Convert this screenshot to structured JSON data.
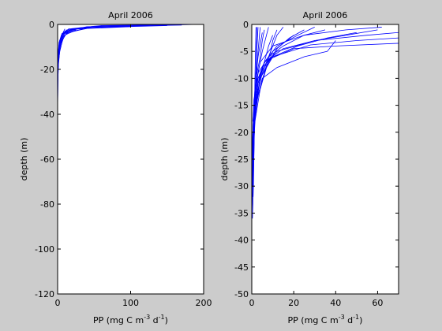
{
  "chart_data": [
    {
      "type": "line",
      "title": "April 2006",
      "xlabel": "PP (mg C m^-3 d^-1)",
      "xlabel_parts": [
        "PP (mg C m",
        "-3",
        " d",
        "-1",
        ")"
      ],
      "ylabel": "depth (m)",
      "xlim": [
        0,
        200
      ],
      "ylim": [
        -120,
        0
      ],
      "xticks": [
        0,
        100,
        200
      ],
      "yticks": [
        0,
        -20,
        -40,
        -60,
        -80,
        -100,
        -120
      ],
      "grid": false,
      "line_color": "#0000ff",
      "series": [
        {
          "x": [
            200,
            60,
            15,
            5,
            2,
            0.5,
            0
          ],
          "y": [
            0,
            -0.5,
            -2,
            -5,
            -10,
            -20,
            -30
          ]
        },
        {
          "x": [
            190,
            50,
            12,
            4,
            1.5,
            0.3
          ],
          "y": [
            0,
            -0.8,
            -2.5,
            -6,
            -12,
            -25
          ]
        },
        {
          "x": [
            170,
            40,
            10,
            3,
            1,
            0
          ],
          "y": [
            -0.3,
            -1,
            -3,
            -7,
            -15,
            -28
          ]
        },
        {
          "x": [
            150,
            35,
            8,
            2.5,
            1,
            0
          ],
          "y": [
            -0.5,
            -1.5,
            -3.5,
            -8,
            -16,
            -35
          ]
        },
        {
          "x": [
            120,
            30,
            7,
            2,
            0.5
          ],
          "y": [
            -0.5,
            -1.5,
            -4,
            -9,
            -18
          ]
        },
        {
          "x": [
            100,
            25,
            6,
            2,
            0.5
          ],
          "y": [
            -1,
            -2,
            -4,
            -8,
            -14
          ]
        },
        {
          "x": [
            80,
            20,
            5,
            1.5,
            0.3
          ],
          "y": [
            -1,
            -2,
            -5,
            -10,
            -20
          ]
        },
        {
          "x": [
            60,
            18,
            6,
            2,
            0.5
          ],
          "y": [
            -1.2,
            -2.2,
            -4.5,
            -9,
            -17
          ]
        },
        {
          "x": [
            45,
            30,
            10,
            3,
            1
          ],
          "y": [
            -1.5,
            -2.5,
            -4,
            -7,
            -12
          ]
        },
        {
          "x": [
            35,
            22,
            8,
            3,
            1,
            0.2
          ],
          "y": [
            -2,
            -3,
            -5,
            -8,
            -13,
            -22
          ]
        },
        {
          "x": [
            25,
            15,
            6,
            2,
            0.5
          ],
          "y": [
            -2.5,
            -3.5,
            -6,
            -10,
            -16
          ]
        },
        {
          "x": [
            20,
            12,
            8,
            4,
            1
          ],
          "y": [
            -3,
            -4,
            -6,
            -9,
            -14
          ]
        },
        {
          "x": [
            15,
            10,
            5,
            2,
            0.5
          ],
          "y": [
            -3,
            -5,
            -8,
            -12,
            -18
          ]
        },
        {
          "x": [
            12,
            8,
            6,
            3,
            1
          ],
          "y": [
            -4,
            -6,
            -8,
            -12,
            -17
          ]
        },
        {
          "x": [
            10,
            7,
            4,
            2,
            0.5
          ],
          "y": [
            -2,
            -4,
            -7,
            -11,
            -16
          ]
        },
        {
          "x": [
            8,
            6,
            3,
            1.5,
            0.3
          ],
          "y": [
            -5,
            -7,
            -10,
            -14,
            -22
          ]
        },
        {
          "x": [
            6,
            4,
            2,
            1,
            0
          ],
          "y": [
            -6,
            -9,
            -13,
            -17,
            -25
          ]
        },
        {
          "x": [
            5,
            3,
            2,
            0.5
          ],
          "y": [
            -7,
            -11,
            -15,
            -20
          ]
        },
        {
          "x": [
            3,
            2,
            1,
            0.5,
            0
          ],
          "y": [
            -8,
            -12,
            -18,
            -24,
            -38
          ]
        }
      ]
    },
    {
      "type": "line",
      "title": "April 2006",
      "xlabel": "PP (mg C m^-3 d^-1)",
      "xlabel_parts": [
        "PP (mg C m",
        "-3",
        " d",
        "-1",
        ")"
      ],
      "ylabel": "depth (m)",
      "xlim": [
        0,
        70
      ],
      "ylim": [
        -50,
        0
      ],
      "xticks": [
        0,
        20,
        40,
        60
      ],
      "yticks": [
        0,
        -5,
        -10,
        -15,
        -20,
        -25,
        -30,
        -35,
        -40,
        -45,
        -50
      ],
      "grid": false,
      "line_color": "#0000ff",
      "series": [
        {
          "x": [
            62,
            45,
            25,
            10,
            4,
            1.5,
            0.5,
            0
          ],
          "y": [
            -0.5,
            -1,
            -2,
            -4,
            -7,
            -12,
            -20,
            -28
          ]
        },
        {
          "x": [
            70,
            55,
            30,
            12,
            5,
            2,
            0.5
          ],
          "y": [
            -1.5,
            -2,
            -3,
            -5,
            -8,
            -14,
            -22
          ]
        },
        {
          "x": [
            70,
            50,
            28,
            10,
            4,
            1,
            0
          ],
          "y": [
            -2.5,
            -3,
            -3.8,
            -6,
            -10,
            -18,
            -30
          ]
        },
        {
          "x": [
            70,
            40,
            20,
            8,
            3,
            1,
            0
          ],
          "y": [
            -3.5,
            -4,
            -4.5,
            -6.5,
            -10,
            -17,
            -25
          ]
        },
        {
          "x": [
            60,
            45,
            30,
            15,
            6,
            2,
            0.5
          ],
          "y": [
            -1,
            -2,
            -3,
            -4.5,
            -7,
            -11,
            -18
          ]
        },
        {
          "x": [
            50,
            36,
            22,
            10,
            4,
            1.5,
            0.5
          ],
          "y": [
            -1.5,
            -2.5,
            -4,
            -6,
            -9,
            -14,
            -22
          ]
        },
        {
          "x": [
            40,
            36,
            25,
            12,
            5,
            2,
            0.5
          ],
          "y": [
            -3,
            -5,
            -6,
            -8,
            -10,
            -15,
            -23
          ]
        },
        {
          "x": [
            35,
            25,
            15,
            8,
            3,
            1,
            0
          ],
          "y": [
            -1,
            -2,
            -4,
            -6,
            -9,
            -14,
            -26
          ]
        },
        {
          "x": [
            30,
            22,
            12,
            6,
            3,
            1
          ],
          "y": [
            -0.5,
            -2,
            -4,
            -7,
            -11,
            -18
          ]
        },
        {
          "x": [
            25,
            18,
            12,
            8,
            4,
            1.5,
            0.5
          ],
          "y": [
            -1,
            -2.5,
            -4.5,
            -7,
            -10,
            -16,
            -24
          ]
        },
        {
          "x": [
            20,
            15,
            10,
            8,
            6,
            3,
            1
          ],
          "y": [
            -2,
            -3.5,
            -5,
            -7,
            -9,
            -13,
            -19
          ]
        },
        {
          "x": [
            15,
            12,
            10,
            8,
            5,
            2,
            0.5
          ],
          "y": [
            -0.5,
            -2,
            -4,
            -6,
            -9,
            -14,
            -22
          ]
        },
        {
          "x": [
            12,
            10,
            9,
            7,
            4,
            1.5
          ],
          "y": [
            -1,
            -3,
            -5,
            -8,
            -12,
            -18
          ]
        },
        {
          "x": [
            10,
            8,
            6,
            4,
            2,
            0.5
          ],
          "y": [
            -2,
            -4,
            -7,
            -10,
            -15,
            -25
          ]
        },
        {
          "x": [
            8,
            7,
            5,
            3,
            1.5,
            0.5,
            0
          ],
          "y": [
            -0.5,
            -2,
            -5,
            -9,
            -14,
            -22,
            -35
          ]
        },
        {
          "x": [
            6,
            5,
            4,
            2,
            1,
            0.3
          ],
          "y": [
            -1,
            -3,
            -6,
            -10,
            -16,
            -24
          ]
        },
        {
          "x": [
            5,
            3,
            1.5,
            0.5,
            0
          ],
          "y": [
            -1.5,
            -6,
            -12,
            -20,
            -30
          ]
        },
        {
          "x": [
            4,
            3,
            2,
            1,
            0.5,
            0
          ],
          "y": [
            -0.5,
            -5,
            -11,
            -18,
            -26,
            -37
          ]
        },
        {
          "x": [
            3,
            2.5,
            2,
            1.5,
            1,
            0.5
          ],
          "y": [
            -0.5,
            -4,
            -9,
            -15,
            -22,
            -30
          ]
        },
        {
          "x": [
            2.5,
            2,
            1.5,
            1,
            0.5
          ],
          "y": [
            -0.5,
            -8,
            -16,
            -24,
            -32
          ]
        },
        {
          "x": [
            2,
            1.5,
            1.2,
            0.8,
            0.3
          ],
          "y": [
            -0.5,
            -10,
            -20,
            -30,
            -36
          ]
        }
      ]
    }
  ]
}
